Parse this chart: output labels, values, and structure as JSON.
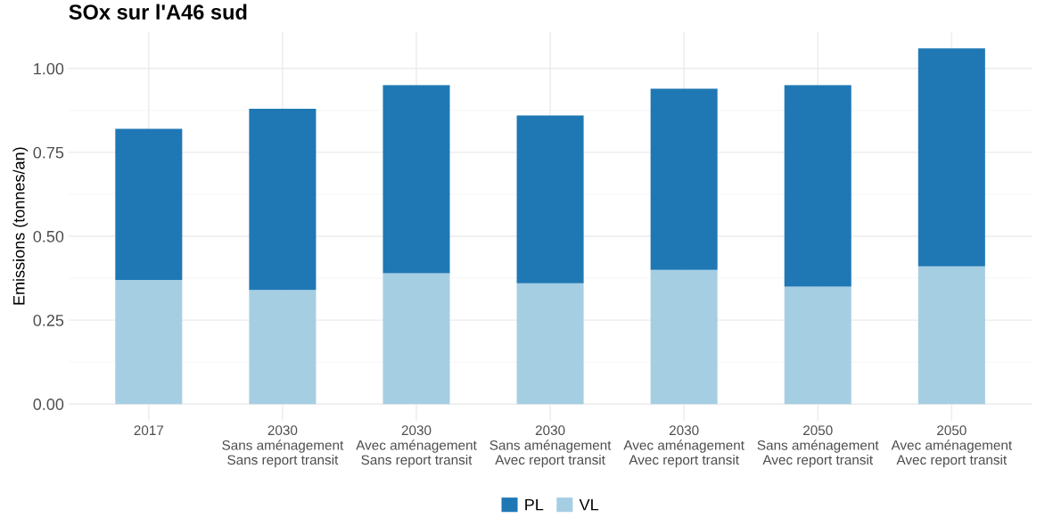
{
  "chart_data": {
    "type": "bar",
    "title": "SOx sur l'A46 sud",
    "ylabel": "Emissions (tonnes/an)",
    "categories": [
      "2017",
      "2030\nSans aménagement\nSans report transit",
      "2030\nAvec aménagement\nSans report transit",
      "2030\nSans aménagement\nAvec report transit",
      "2030\nAvec aménagement\nAvec report transit",
      "2050\nSans aménagement\nAvec report transit",
      "2050\nAvec aménagement\nAvec report transit"
    ],
    "stacked": true,
    "series": [
      {
        "name": "VL",
        "color": "#a6cee3",
        "values": [
          0.37,
          0.34,
          0.39,
          0.36,
          0.4,
          0.35,
          0.41
        ]
      },
      {
        "name": "PL",
        "color": "#1f78b4",
        "values": [
          0.45,
          0.54,
          0.56,
          0.5,
          0.54,
          0.6,
          0.65
        ]
      }
    ],
    "ylim": [
      -0.05,
      1.11
    ],
    "yticks": [
      {
        "value": 0,
        "label": "0.00"
      },
      {
        "value": 0.25,
        "label": "0.25"
      },
      {
        "value": 0.5,
        "label": "0.50"
      },
      {
        "value": 0.75,
        "label": "0.75"
      },
      {
        "value": 1,
        "label": "1.00"
      }
    ],
    "grid": true,
    "legend": "bottom"
  }
}
